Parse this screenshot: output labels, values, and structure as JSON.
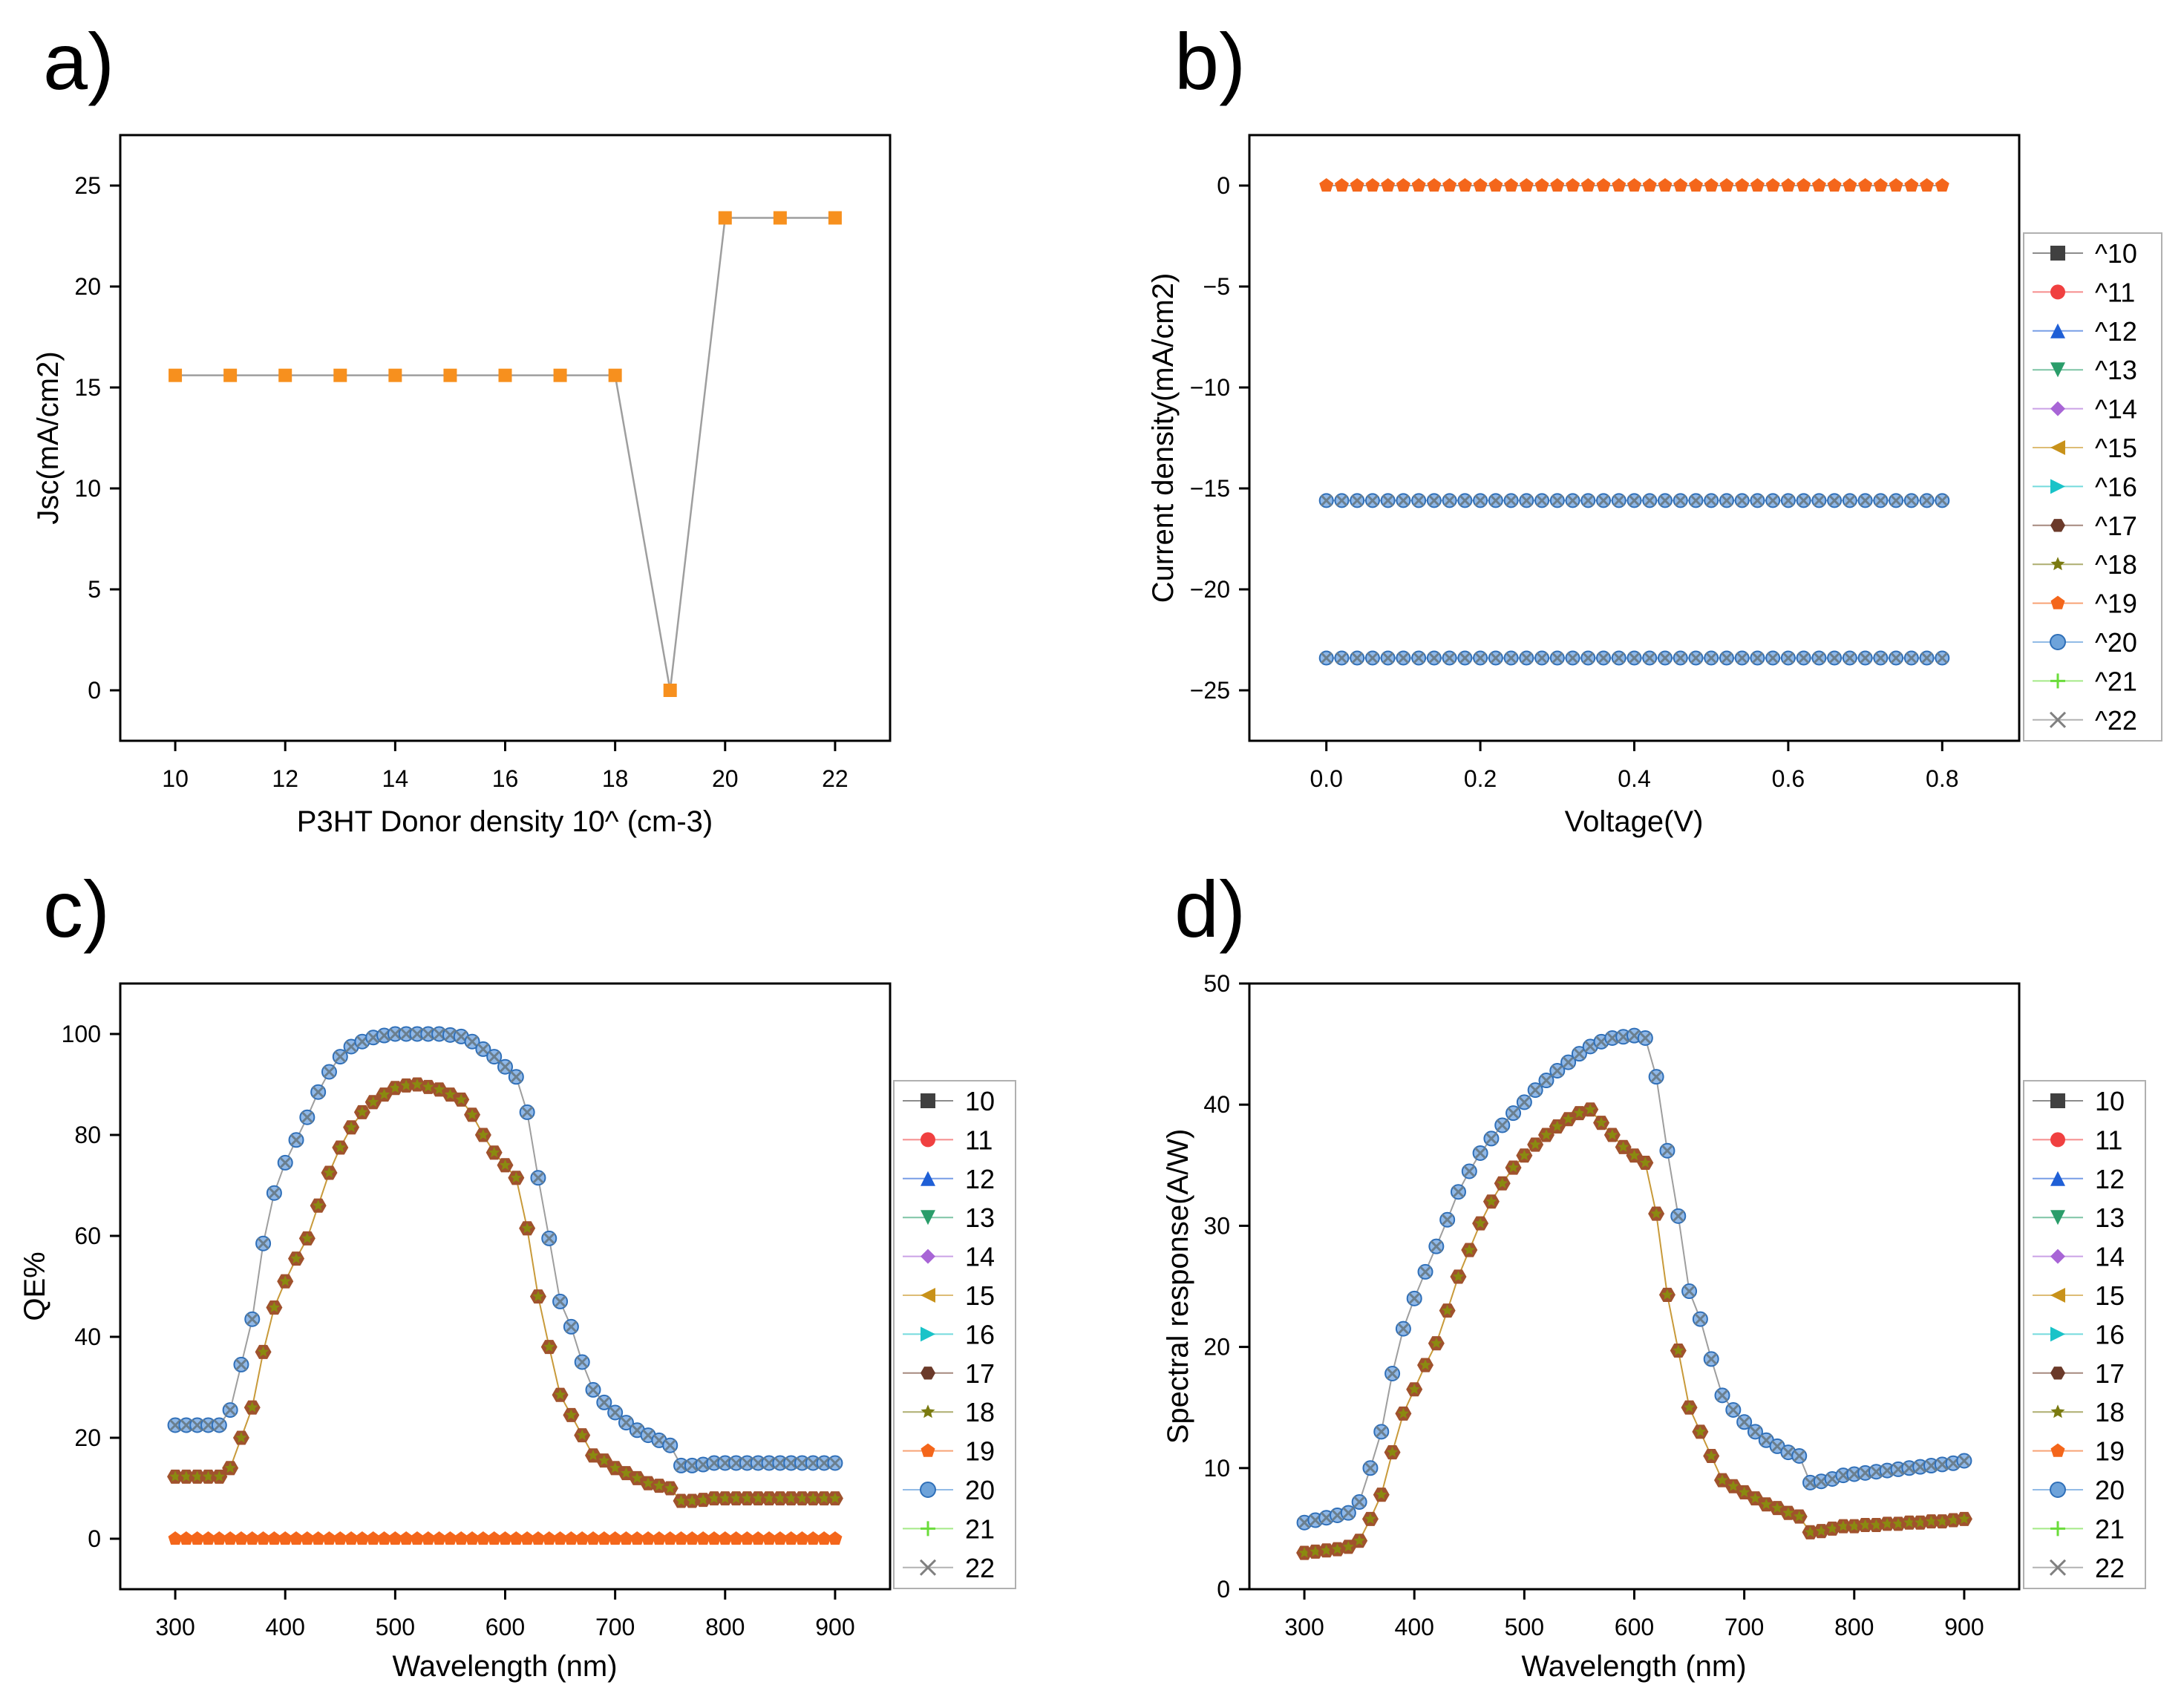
{
  "figure": {
    "panels": [
      "a)",
      "b)",
      "c)",
      "d)"
    ]
  },
  "colors": {
    "orange": "#f7901e",
    "axis": "#000000",
    "line_gray": "#9e9e9e",
    "series": {
      "10": "#404040",
      "11": "#f04040",
      "12": "#1f5fd6",
      "13": "#2a9d6a",
      "14": "#a865d6",
      "15": "#c8921a",
      "16": "#19c3c8",
      "17": "#6b3a2a",
      "18": "#7a7a10",
      "19": "#f4661b",
      "20": "#4b8fd6",
      "21": "#6adc3a",
      "22": "#808080"
    }
  },
  "chart_data": [
    {
      "id": "a",
      "type": "line",
      "title": "",
      "xlabel": "P3HT Donor density 10^ (cm-3)",
      "ylabel": "Jsc(mA/cm2)",
      "xlim": [
        9,
        23
      ],
      "ylim": [
        -2.5,
        27.5
      ],
      "xticks": [
        10,
        12,
        14,
        16,
        18,
        20,
        22
      ],
      "yticks": [
        0,
        5,
        10,
        15,
        20,
        25
      ],
      "x": [
        10,
        11,
        12,
        13,
        14,
        15,
        16,
        17,
        18,
        19,
        20,
        21,
        22
      ],
      "y": [
        15.6,
        15.6,
        15.6,
        15.6,
        15.6,
        15.6,
        15.6,
        15.6,
        15.6,
        0,
        23.4,
        23.4,
        23.4
      ]
    },
    {
      "id": "b",
      "type": "line",
      "title": "",
      "xlabel": "Voltage(V)",
      "ylabel": "Current density(mA/cm2)",
      "xlim": [
        -0.1,
        0.9
      ],
      "ylim": [
        -27.5,
        2.5
      ],
      "xticks": [
        0.0,
        0.2,
        0.4,
        0.6,
        0.8
      ],
      "xtick_labels": [
        "0.0",
        "0.2",
        "0.4",
        "0.6",
        "0.8"
      ],
      "yticks": [
        0,
        -5,
        -10,
        -15,
        -20,
        -25
      ],
      "yticklabels": [
        "0",
        "−5",
        "−10",
        "−15",
        "−20",
        "−25"
      ],
      "legend": [
        "^10",
        "^11",
        "^12",
        "^13",
        "^14",
        "^15",
        "^16",
        "^17",
        "^18",
        "^19",
        "^20",
        "^21",
        "^22"
      ],
      "series": [
        {
          "name": "^10–^18",
          "x_range": [
            0,
            0.8
          ],
          "n": 41,
          "value": -15.6
        },
        {
          "name": "^19",
          "x_range": [
            0,
            0.8
          ],
          "n": 41,
          "value": 0
        },
        {
          "name": "^20–^22",
          "x_range": [
            0,
            0.8
          ],
          "n": 41,
          "value": -23.4
        }
      ]
    },
    {
      "id": "c",
      "type": "line",
      "title": "",
      "xlabel": "Wavelength (nm)",
      "ylabel": "QE%",
      "xlim": [
        250,
        950
      ],
      "ylim": [
        -10,
        110
      ],
      "xticks": [
        300,
        400,
        500,
        600,
        700,
        800,
        900
      ],
      "yticks": [
        0,
        20,
        40,
        60,
        80,
        100
      ],
      "legend": [
        "10",
        "11",
        "12",
        "13",
        "14",
        "15",
        "16",
        "17",
        "18",
        "19",
        "20",
        "21",
        "22"
      ],
      "series": [
        {
          "name": "10–18",
          "x": [
            300,
            310,
            320,
            330,
            340,
            350,
            360,
            370,
            380,
            390,
            400,
            410,
            420,
            430,
            440,
            450,
            460,
            470,
            480,
            490,
            500,
            510,
            520,
            530,
            540,
            550,
            560,
            570,
            580,
            590,
            600,
            610,
            620,
            630,
            640,
            650,
            660,
            670,
            680,
            690,
            700,
            710,
            720,
            730,
            740,
            750,
            760,
            770,
            780,
            790,
            800,
            810,
            820,
            830,
            840,
            850,
            860,
            870,
            880,
            890,
            900
          ],
          "y": [
            12.3,
            12.3,
            12.3,
            12.3,
            12.3,
            14.0,
            20.0,
            26.0,
            37.0,
            45.8,
            51.0,
            55.5,
            59.5,
            66.0,
            72.5,
            77.5,
            81.5,
            84.5,
            86.5,
            88.0,
            89.3,
            89.8,
            90.0,
            89.5,
            89.0,
            88.0,
            87.0,
            84.0,
            80.0,
            76.5,
            74.0,
            71.5,
            61.5,
            48.0,
            38.0,
            28.5,
            24.5,
            20.5,
            16.5,
            15.5,
            14.0,
            13.0,
            12.0,
            11.0,
            10.5,
            10.0,
            7.5,
            7.5,
            7.7,
            8.0,
            8.0,
            8.0,
            8.0,
            8.0,
            8.0,
            8.0,
            8.0,
            8.0,
            8.0,
            8.0,
            8.0
          ]
        },
        {
          "name": "19",
          "x": [
            300,
            310,
            320,
            330,
            340,
            350,
            360,
            370,
            380,
            390,
            400,
            410,
            420,
            430,
            440,
            450,
            460,
            470,
            480,
            490,
            500,
            510,
            520,
            530,
            540,
            550,
            560,
            570,
            580,
            590,
            600,
            610,
            620,
            630,
            640,
            650,
            660,
            670,
            680,
            690,
            700,
            710,
            720,
            730,
            740,
            750,
            760,
            770,
            780,
            790,
            800,
            810,
            820,
            830,
            840,
            850,
            860,
            870,
            880,
            890,
            900
          ],
          "y": [
            0,
            0,
            0,
            0,
            0,
            0,
            0,
            0,
            0,
            0,
            0,
            0,
            0,
            0,
            0,
            0,
            0,
            0,
            0,
            0,
            0,
            0,
            0,
            0,
            0,
            0,
            0,
            0,
            0,
            0,
            0,
            0,
            0,
            0,
            0,
            0,
            0,
            0,
            0,
            0,
            0,
            0,
            0,
            0,
            0,
            0,
            0,
            0,
            0,
            0,
            0,
            0,
            0,
            0,
            0,
            0,
            0,
            0,
            0,
            0,
            0
          ]
        },
        {
          "name": "20–22",
          "x": [
            300,
            310,
            320,
            330,
            340,
            350,
            360,
            370,
            380,
            390,
            400,
            410,
            420,
            430,
            440,
            450,
            460,
            470,
            480,
            490,
            500,
            510,
            520,
            530,
            540,
            550,
            560,
            570,
            580,
            590,
            600,
            610,
            620,
            630,
            640,
            650,
            660,
            670,
            680,
            690,
            700,
            710,
            720,
            730,
            740,
            750,
            760,
            770,
            780,
            790,
            800,
            810,
            820,
            830,
            840,
            850,
            860,
            870,
            880,
            890,
            900
          ],
          "y": [
            22.5,
            22.5,
            22.5,
            22.5,
            22.5,
            25.5,
            34.5,
            43.5,
            58.5,
            68.5,
            74.5,
            79.0,
            83.5,
            88.5,
            92.5,
            95.5,
            97.5,
            98.5,
            99.3,
            99.7,
            100.0,
            100.0,
            100.0,
            100.0,
            100.0,
            99.8,
            99.5,
            98.5,
            97.0,
            95.5,
            93.5,
            91.5,
            84.5,
            71.5,
            59.5,
            47.0,
            42.0,
            35.0,
            29.5,
            27.0,
            25.0,
            23.0,
            21.5,
            20.5,
            19.5,
            18.5,
            14.5,
            14.5,
            14.7,
            15.0,
            15.0,
            15.0,
            15.0,
            15.0,
            15.0,
            15.0,
            15.0,
            15.0,
            15.0,
            15.0,
            15.0
          ]
        }
      ]
    },
    {
      "id": "d",
      "type": "line",
      "title": "",
      "xlabel": "Wavelength (nm)",
      "ylabel": "Spectral response(A/W)",
      "xlim": [
        250,
        950
      ],
      "ylim": [
        0,
        50
      ],
      "xticks": [
        300,
        400,
        500,
        600,
        700,
        800,
        900
      ],
      "yticks": [
        0,
        10,
        20,
        30,
        40,
        50
      ],
      "legend": [
        "10",
        "11",
        "12",
        "13",
        "14",
        "15",
        "16",
        "17",
        "18",
        "19",
        "20",
        "21",
        "22"
      ],
      "series": [
        {
          "name": "10–19",
          "x": [
            300,
            310,
            320,
            330,
            340,
            350,
            360,
            370,
            380,
            390,
            400,
            410,
            420,
            430,
            440,
            450,
            460,
            470,
            480,
            490,
            500,
            510,
            520,
            530,
            540,
            550,
            560,
            570,
            580,
            590,
            600,
            610,
            620,
            630,
            640,
            650,
            660,
            670,
            680,
            690,
            700,
            710,
            720,
            730,
            740,
            750,
            760,
            770,
            780,
            790,
            800,
            810,
            820,
            830,
            840,
            850,
            860,
            870,
            880,
            890,
            900
          ],
          "y": [
            3.0,
            3.1,
            3.2,
            3.3,
            3.5,
            4.0,
            5.8,
            7.8,
            11.3,
            14.5,
            16.5,
            18.5,
            20.3,
            23.0,
            25.8,
            28.0,
            30.2,
            32.0,
            33.5,
            34.8,
            35.8,
            36.7,
            37.5,
            38.2,
            38.8,
            39.3,
            39.6,
            38.5,
            37.5,
            36.5,
            35.8,
            35.2,
            31.0,
            24.3,
            19.7,
            15.0,
            13.0,
            11.0,
            9.0,
            8.5,
            8.0,
            7.5,
            7.0,
            6.7,
            6.3,
            6.0,
            4.7,
            4.8,
            5.0,
            5.2,
            5.2,
            5.3,
            5.3,
            5.4,
            5.4,
            5.5,
            5.5,
            5.6,
            5.6,
            5.7,
            5.8
          ]
        },
        {
          "name": "20–22",
          "x": [
            300,
            310,
            320,
            330,
            340,
            350,
            360,
            370,
            380,
            390,
            400,
            410,
            420,
            430,
            440,
            450,
            460,
            470,
            480,
            490,
            500,
            510,
            520,
            530,
            540,
            550,
            560,
            570,
            580,
            590,
            600,
            610,
            620,
            630,
            640,
            650,
            660,
            670,
            680,
            690,
            700,
            710,
            720,
            730,
            740,
            750,
            760,
            770,
            780,
            790,
            800,
            810,
            820,
            830,
            840,
            850,
            860,
            870,
            880,
            890,
            900
          ],
          "y": [
            5.5,
            5.7,
            5.9,
            6.1,
            6.3,
            7.2,
            10.0,
            13.0,
            17.8,
            21.5,
            24.0,
            26.2,
            28.3,
            30.5,
            32.8,
            34.5,
            36.0,
            37.2,
            38.3,
            39.3,
            40.2,
            41.2,
            42.0,
            42.8,
            43.5,
            44.2,
            44.8,
            45.2,
            45.5,
            45.6,
            45.7,
            45.5,
            42.3,
            36.2,
            30.8,
            24.6,
            22.3,
            19.0,
            16.0,
            14.8,
            13.8,
            13.0,
            12.3,
            11.8,
            11.3,
            11.0,
            8.8,
            8.9,
            9.1,
            9.4,
            9.5,
            9.6,
            9.7,
            9.8,
            9.9,
            10.0,
            10.1,
            10.2,
            10.3,
            10.4,
            10.6
          ]
        }
      ]
    }
  ]
}
